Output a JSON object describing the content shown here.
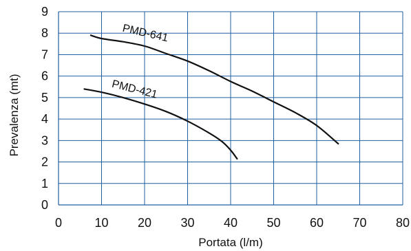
{
  "chart_data": {
    "type": "line",
    "title": "",
    "xlabel": "Portata (l/m)",
    "ylabel": "Prevalenza (mt)",
    "xlim": [
      0,
      80
    ],
    "ylim": [
      0,
      9
    ],
    "x_ticks": [
      0,
      10,
      20,
      30,
      40,
      50,
      60,
      70,
      80
    ],
    "y_ticks": [
      0,
      1,
      2,
      3,
      4,
      5,
      6,
      7,
      8,
      9
    ],
    "grid": true,
    "legend": "none",
    "series": [
      {
        "name": "PMD-641",
        "x": [
          7.5,
          10,
          15,
          20,
          25,
          30,
          35,
          40,
          45,
          50,
          55,
          60,
          65
        ],
        "y": [
          7.9,
          7.75,
          7.6,
          7.4,
          7.05,
          6.7,
          6.25,
          5.75,
          5.3,
          4.8,
          4.3,
          3.7,
          2.85
        ]
      },
      {
        "name": "PMD-421",
        "x": [
          6,
          10,
          15,
          20,
          25,
          30,
          35,
          38,
          40,
          41.5
        ],
        "y": [
          5.4,
          5.25,
          5.0,
          4.7,
          4.35,
          3.9,
          3.35,
          2.95,
          2.55,
          2.15
        ]
      }
    ]
  }
}
